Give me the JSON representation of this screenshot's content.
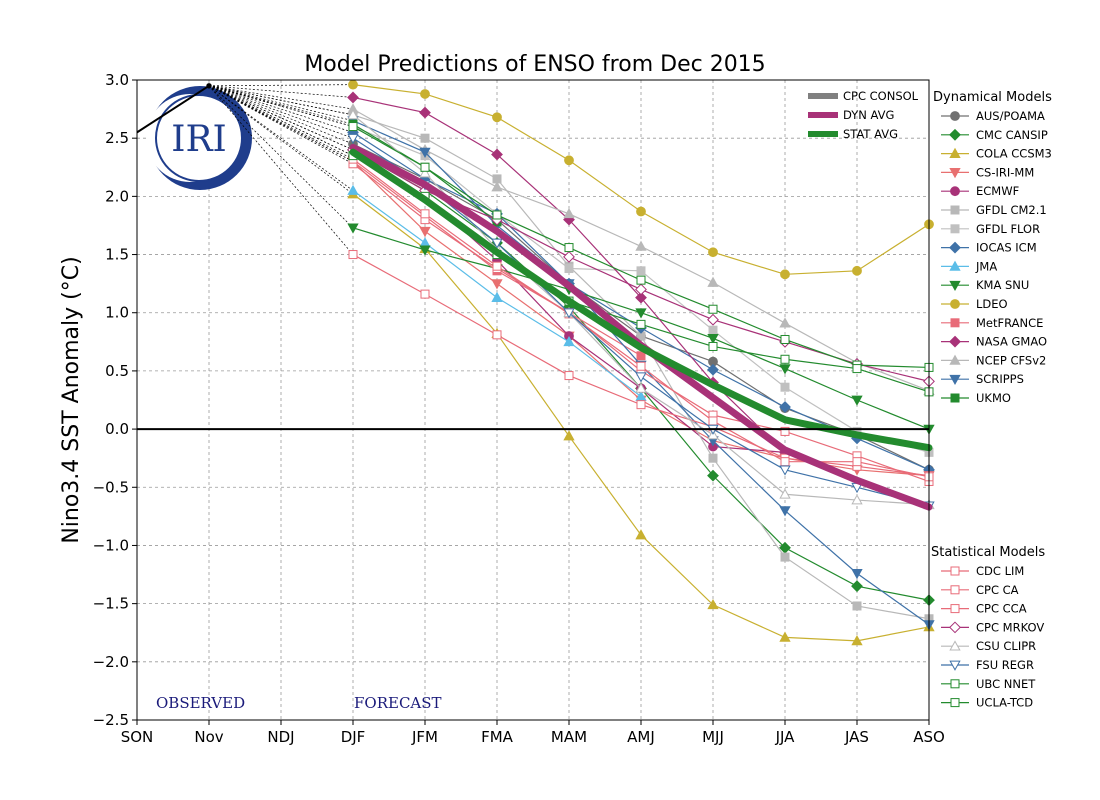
{
  "chart_data": {
    "type": "line",
    "title": "Model Predictions of ENSO from Dec 2015",
    "ylabel": "Nino3.4 SST Anomaly (°C)",
    "xlabel": "",
    "categories": [
      "SON",
      "Nov",
      "NDJ",
      "DJF",
      "JFM",
      "FMA",
      "MAM",
      "AMJ",
      "MJJ",
      "JJA",
      "JAS",
      "ASO"
    ],
    "ylim": [
      -2.5,
      3.0
    ],
    "yticks": [
      3.0,
      2.5,
      2.0,
      1.5,
      1.0,
      0.5,
      0.0,
      -0.5,
      -1.0,
      -1.5,
      -2.0,
      -2.5
    ],
    "ytick_labels": [
      "3.0",
      "2.5",
      "2.0",
      "1.5",
      "1.0",
      "0.5",
      "0.0",
      "−0.5",
      "−1.0",
      "−1.5",
      "−2.0",
      "−2.5"
    ],
    "grid": true,
    "observed": {
      "x": [
        "SON",
        "Nov"
      ],
      "values": [
        2.55,
        2.95
      ]
    },
    "annotations": {
      "observed": "OBSERVED",
      "forecast": "FORECAST",
      "logo": "IRI"
    },
    "consensus_legend_title": "",
    "consensus": [
      {
        "name": "CPC CONSOL",
        "color": "#808080",
        "values": [
          null,
          null,
          null,
          null,
          null,
          null,
          null,
          null,
          null,
          null,
          null,
          null
        ],
        "show": false
      },
      {
        "name": "DYN AVG",
        "color": "#a83278",
        "values": [
          null,
          null,
          null,
          2.42,
          2.1,
          1.7,
          1.23,
          0.72,
          0.27,
          -0.18,
          -0.44,
          -0.67
        ],
        "show": true
      },
      {
        "name": "STAT AVG",
        "color": "#238b2e",
        "values": [
          null,
          null,
          null,
          2.38,
          1.97,
          1.52,
          1.1,
          0.7,
          0.38,
          0.08,
          -0.05,
          -0.16
        ],
        "show": true
      }
    ],
    "dynamical_title": "Dynamical Models",
    "dynamical": [
      {
        "name": "AUS/POAMA",
        "color": "#707070",
        "marker": "circle",
        "fill": true,
        "values": [
          null,
          null,
          null,
          2.45,
          2.15,
          1.8,
          1.25,
          0.8,
          0.58,
          0.18,
          -0.05,
          -0.35
        ]
      },
      {
        "name": "CMC CANSIP",
        "color": "#238b2e",
        "marker": "diamond",
        "fill": true,
        "values": [
          null,
          null,
          null,
          2.4,
          2.05,
          1.6,
          1.05,
          0.35,
          -0.4,
          -1.02,
          -1.35,
          -1.47
        ]
      },
      {
        "name": "COLA CCSM3",
        "color": "#c8b030",
        "marker": "triangle-up",
        "fill": true,
        "values": [
          null,
          null,
          null,
          2.02,
          1.55,
          0.82,
          -0.06,
          -0.91,
          -1.51,
          -1.79,
          -1.82,
          -1.7
        ]
      },
      {
        "name": "CS-IRI-MM",
        "color": "#e87070",
        "marker": "triangle-down",
        "fill": true,
        "values": [
          null,
          null,
          null,
          2.3,
          1.7,
          1.25,
          0.8,
          0.25,
          -0.1,
          -0.25,
          -0.35,
          -0.4
        ]
      },
      {
        "name": "ECMWF",
        "color": "#a83278",
        "marker": "circle",
        "fill": true,
        "values": [
          null,
          null,
          null,
          2.35,
          2.0,
          1.45,
          0.8,
          0.35,
          -0.15,
          -0.2,
          null,
          null
        ]
      },
      {
        "name": "GFDL CM2.1",
        "color": "#b8b8b8",
        "marker": "square",
        "fill": true,
        "values": [
          null,
          null,
          null,
          2.7,
          2.5,
          2.15,
          1.4,
          0.8,
          -0.25,
          -1.1,
          -1.52,
          -1.63
        ]
      },
      {
        "name": "GFDL FLOR",
        "color": "#c0c0c0",
        "marker": "square",
        "fill": true,
        "values": [
          null,
          null,
          null,
          2.6,
          2.35,
          1.85,
          1.38,
          1.36,
          0.85,
          0.36,
          -0.02,
          -0.2
        ]
      },
      {
        "name": "IOCAS ICM",
        "color": "#3f72a8",
        "marker": "diamond",
        "fill": true,
        "values": [
          null,
          null,
          null,
          2.55,
          2.15,
          1.85,
          1.25,
          0.87,
          0.51,
          0.19,
          -0.08,
          -0.35
        ]
      },
      {
        "name": "JMA",
        "color": "#5bbde8",
        "marker": "triangle-up",
        "fill": true,
        "values": [
          null,
          null,
          null,
          2.05,
          1.6,
          1.13,
          0.75,
          0.28,
          null,
          null,
          null,
          null
        ]
      },
      {
        "name": "KMA SNU",
        "color": "#238b2e",
        "marker": "triangle-down",
        "fill": true,
        "values": [
          null,
          null,
          null,
          1.73,
          1.54,
          1.38,
          1.2,
          1.0,
          0.78,
          0.52,
          0.25,
          0.0
        ]
      },
      {
        "name": "LDEO",
        "color": "#c8b030",
        "marker": "circle",
        "fill": true,
        "values": [
          null,
          null,
          null,
          2.96,
          2.88,
          2.68,
          2.31,
          1.87,
          1.52,
          1.33,
          1.36,
          1.76
        ]
      },
      {
        "name": "MetFRANCE",
        "color": "#e86b78",
        "marker": "square",
        "fill": true,
        "values": [
          null,
          null,
          null,
          2.3,
          1.83,
          1.36,
          1.0,
          0.63,
          null,
          null,
          null,
          null
        ]
      },
      {
        "name": "NASA GMAO",
        "color": "#a83278",
        "marker": "diamond",
        "fill": true,
        "values": [
          null,
          null,
          null,
          2.85,
          2.72,
          2.36,
          1.8,
          1.13,
          0.4,
          -0.2,
          null,
          null
        ]
      },
      {
        "name": "NCEP CFSv2",
        "color": "#b8b8b8",
        "marker": "triangle-up",
        "fill": true,
        "values": [
          null,
          null,
          null,
          2.75,
          2.4,
          2.08,
          1.85,
          1.57,
          1.26,
          0.91,
          0.57,
          0.33
        ]
      },
      {
        "name": "SCRIPPS",
        "color": "#3f72a8",
        "marker": "triangle-down",
        "fill": true,
        "values": [
          null,
          null,
          null,
          2.65,
          2.38,
          1.75,
          1.25,
          0.55,
          -0.1,
          -0.7,
          -1.24,
          -1.68
        ]
      },
      {
        "name": "UKMO",
        "color": "#238b2e",
        "marker": "square",
        "fill": true,
        "values": [
          null,
          null,
          null,
          2.62,
          2.25,
          1.78,
          null,
          null,
          null,
          null,
          null,
          null
        ]
      }
    ],
    "statistical_title": "Statistical Models",
    "statistical": [
      {
        "name": "CDC LIM",
        "color": "#e86b78",
        "marker": "square",
        "fill": false,
        "values": [
          null,
          null,
          null,
          1.5,
          1.16,
          0.81,
          0.46,
          0.21,
          0.02,
          -0.25,
          -0.32,
          -0.4
        ]
      },
      {
        "name": "CPC CA",
        "color": "#e86b78",
        "marker": "square",
        "fill": false,
        "values": [
          null,
          null,
          null,
          2.28,
          1.8,
          1.38,
          1.0,
          0.5,
          0.12,
          -0.02,
          -0.23,
          -0.45
        ]
      },
      {
        "name": "CPC CCA",
        "color": "#e86b78",
        "marker": "square",
        "fill": false,
        "values": [
          null,
          null,
          null,
          2.32,
          1.85,
          1.4,
          0.99,
          0.54,
          0.07,
          -0.28,
          -0.28,
          -0.41
        ]
      },
      {
        "name": "CPC MRKOV",
        "color": "#a83278",
        "marker": "diamond",
        "fill": false,
        "values": [
          null,
          null,
          null,
          2.4,
          2.05,
          1.8,
          1.48,
          1.2,
          0.94,
          0.75,
          0.56,
          0.41
        ]
      },
      {
        "name": "CSU CLIPR",
        "color": "#b8b8b8",
        "marker": "triangle-up",
        "fill": false,
        "values": [
          null,
          null,
          null,
          2.7,
          2.2,
          1.55,
          1.0,
          0.35,
          -0.05,
          -0.56,
          -0.61,
          -0.65
        ]
      },
      {
        "name": "FSU REGR",
        "color": "#3f72a8",
        "marker": "triangle-down",
        "fill": false,
        "values": [
          null,
          null,
          null,
          2.5,
          2.1,
          1.6,
          1.0,
          0.45,
          0.0,
          -0.35,
          -0.5,
          -0.66
        ]
      },
      {
        "name": "UBC NNET",
        "color": "#238b2e",
        "marker": "square",
        "fill": false,
        "values": [
          null,
          null,
          null,
          2.6,
          2.25,
          1.84,
          1.56,
          1.28,
          1.03,
          0.77,
          0.55,
          0.53
        ]
      },
      {
        "name": "UCLA-TCD",
        "color": "#238b2e",
        "marker": "square",
        "fill": false,
        "values": [
          null,
          null,
          null,
          2.35,
          2.0,
          1.5,
          1.1,
          0.9,
          0.71,
          0.6,
          0.52,
          0.32
        ]
      }
    ]
  }
}
